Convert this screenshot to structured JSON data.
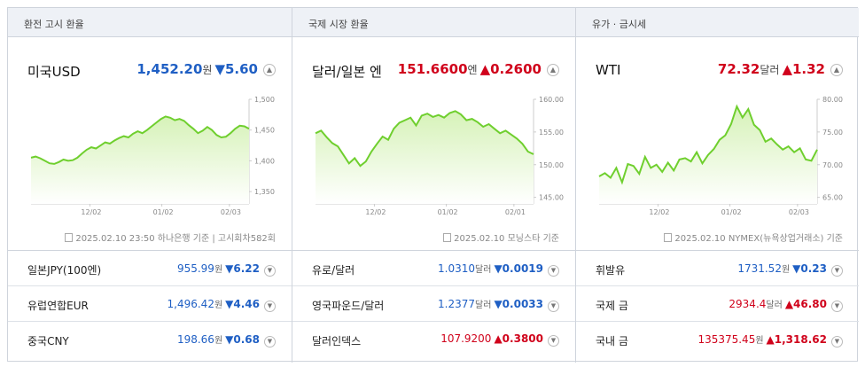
{
  "colors": {
    "up": "#d0021b",
    "down": "#1f5fc4",
    "line": "#6fcf2e",
    "fill": "#d6f2b8"
  },
  "columns": [
    {
      "header": "환전 고시 환율",
      "main": {
        "name": "미국USD",
        "value": "1,452.20",
        "unit": "원",
        "change": "▼5.60",
        "dir": "down",
        "toggle_icon": "chevron-up-icon"
      },
      "footer": {
        "date": "2025.02.10 23:50",
        "source": "하나은행 기준",
        "extra": "고시회차582회"
      },
      "chart_data": {
        "type": "area",
        "x_ticks": [
          "12/02",
          "01/02",
          "02/03"
        ],
        "y_ticks": [
          "1,500",
          "1,450",
          "1,400",
          "1,350"
        ],
        "ylim": [
          1330,
          1500
        ],
        "values": [
          1405,
          1407,
          1404,
          1400,
          1396,
          1395,
          1398,
          1402,
          1400,
          1401,
          1405,
          1412,
          1418,
          1422,
          1420,
          1425,
          1430,
          1428,
          1433,
          1437,
          1440,
          1438,
          1444,
          1448,
          1445,
          1450,
          1456,
          1462,
          1468,
          1472,
          1470,
          1466,
          1468,
          1465,
          1458,
          1452,
          1445,
          1449,
          1455,
          1450,
          1442,
          1438,
          1439,
          1445,
          1452,
          1457,
          1456,
          1452
        ]
      },
      "rows": [
        {
          "name": "일본JPY(100엔)",
          "value": "955.99",
          "unit": "원",
          "change": "▼6.22",
          "dir": "down"
        },
        {
          "name": "유럽연합EUR",
          "value": "1,496.42",
          "unit": "원",
          "change": "▼4.46",
          "dir": "down"
        },
        {
          "name": "중국CNY",
          "value": "198.66",
          "unit": "원",
          "change": "▼0.68",
          "dir": "down"
        }
      ]
    },
    {
      "header": "국제 시장 환율",
      "main": {
        "name": "달러/일본 엔",
        "value": "151.6600",
        "unit": "엔",
        "change": "▲0.2600",
        "dir": "up",
        "toggle_icon": "chevron-up-icon"
      },
      "footer": {
        "date": "2025.02.10",
        "source": "모닝스타 기준",
        "extra": ""
      },
      "chart_data": {
        "type": "area",
        "x_ticks": [
          "12/02",
          "01/02",
          "02/01"
        ],
        "y_ticks": [
          "160.00",
          "155.00",
          "150.00",
          "145.00"
        ],
        "ylim": [
          144,
          160
        ],
        "values": [
          154.8,
          155.2,
          154.2,
          153.3,
          152.8,
          151.5,
          150.2,
          151.0,
          149.8,
          150.5,
          152.0,
          153.2,
          154.3,
          153.8,
          155.5,
          156.4,
          156.8,
          157.2,
          156.0,
          157.5,
          157.8,
          157.3,
          157.6,
          157.2,
          157.9,
          158.2,
          157.7,
          156.8,
          157.0,
          156.5,
          155.8,
          156.2,
          155.5,
          154.8,
          155.2,
          154.6,
          154.0,
          153.2,
          152.0,
          151.6
        ]
      },
      "rows": [
        {
          "name": "유로/달러",
          "value": "1.0310",
          "unit": "달러",
          "change": "▼0.0019",
          "dir": "down"
        },
        {
          "name": "영국파운드/달러",
          "value": "1.2377",
          "unit": "달러",
          "change": "▼0.0033",
          "dir": "down"
        },
        {
          "name": "달러인덱스",
          "value": "107.9200",
          "unit": "",
          "change": "▲0.3800",
          "dir": "up"
        }
      ]
    },
    {
      "header": "유가 · 금시세",
      "main": {
        "name": "WTI",
        "value": "72.32",
        "unit": "달러",
        "change": "▲1.32",
        "dir": "up",
        "toggle_icon": "chevron-up-icon"
      },
      "footer": {
        "date": "2025.02.10",
        "source": "NYMEX(뉴욕상업거래소) 기준",
        "extra": ""
      },
      "chart_data": {
        "type": "area",
        "x_ticks": [
          "12/02",
          "01/02",
          "02/03"
        ],
        "y_ticks": [
          "80.00",
          "75.00",
          "70.00",
          "65.00"
        ],
        "ylim": [
          64,
          80
        ],
        "values": [
          68.2,
          68.7,
          68.0,
          69.5,
          67.3,
          70.1,
          69.8,
          68.6,
          71.2,
          69.5,
          70.0,
          68.9,
          70.3,
          69.1,
          70.8,
          71.0,
          70.5,
          71.9,
          70.2,
          71.5,
          72.4,
          73.8,
          74.5,
          76.2,
          78.9,
          77.2,
          78.5,
          76.1,
          75.3,
          73.5,
          74.0,
          73.1,
          72.3,
          72.8,
          71.9,
          72.5,
          70.8,
          70.6,
          72.3
        ]
      },
      "rows": [
        {
          "name": "휘발유",
          "value": "1731.52",
          "unit": "원",
          "change": "▼0.23",
          "dir": "down"
        },
        {
          "name": "국제 금",
          "value": "2934.4",
          "unit": "달러",
          "change": "▲46.80",
          "dir": "up"
        },
        {
          "name": "국내 금",
          "value": "135375.45",
          "unit": "원",
          "change": "▲1,318.62",
          "dir": "up"
        }
      ]
    }
  ]
}
